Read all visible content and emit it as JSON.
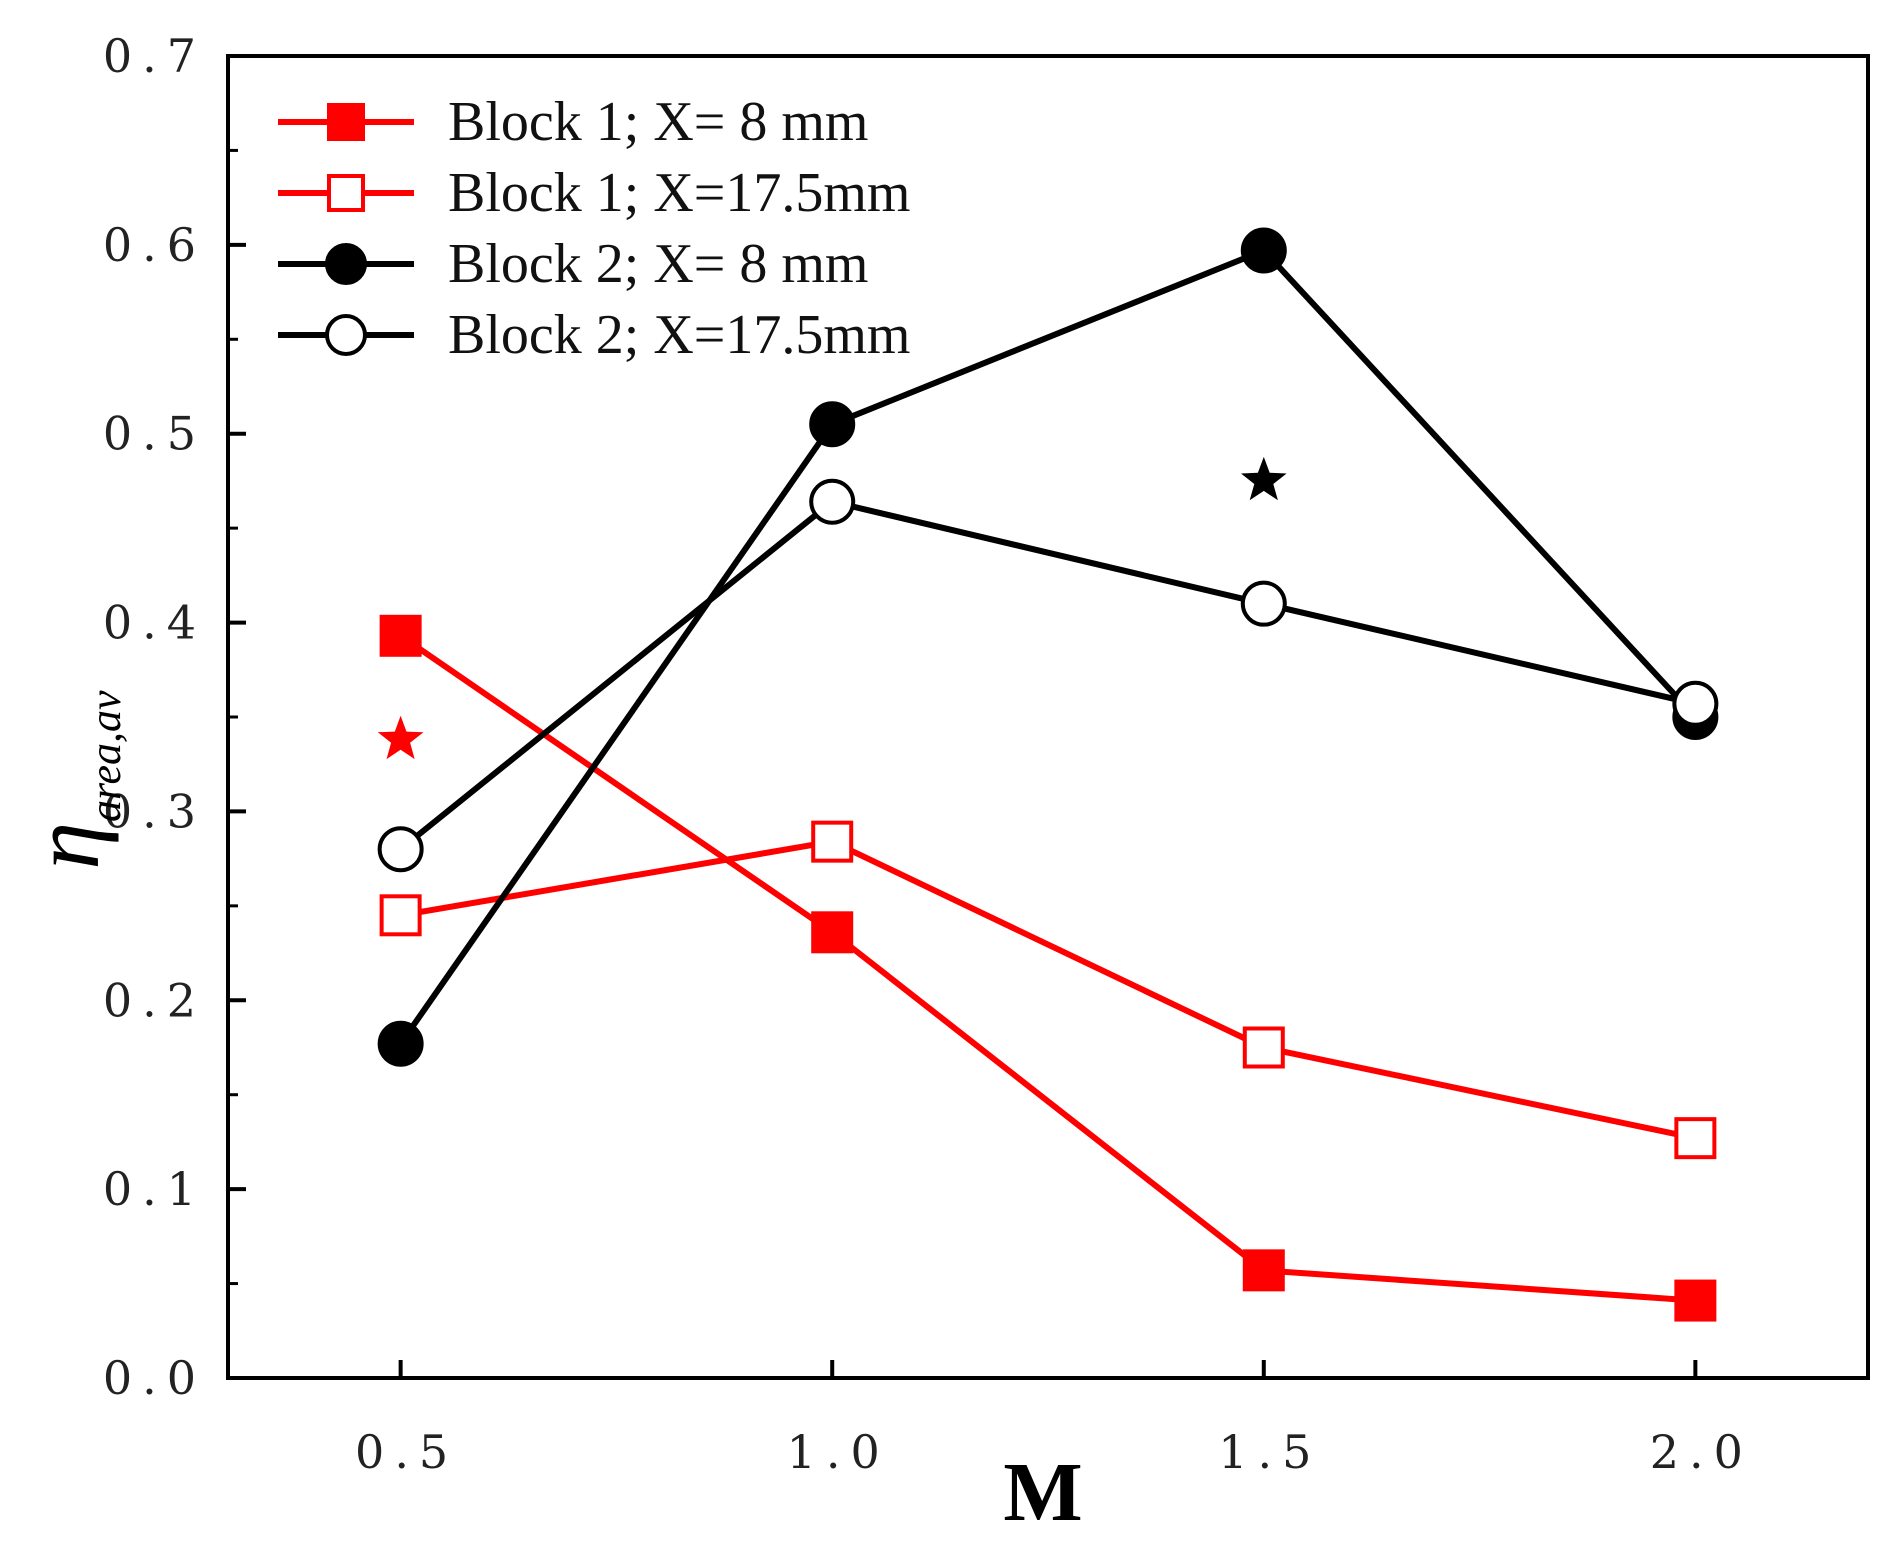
{
  "chart_data": {
    "type": "line",
    "title": "",
    "xlabel": "M",
    "ylabel": {
      "symbol": "η",
      "subscript": "area,av"
    },
    "xlim": [
      0.3,
      2.2
    ],
    "ylim": [
      0.0,
      0.7
    ],
    "x_ticks": [
      0.5,
      1.0,
      1.5,
      2.0
    ],
    "x_tick_labels": [
      "0.5",
      "1.0",
      "1.5",
      "2.0"
    ],
    "y_ticks": [
      0.0,
      0.1,
      0.2,
      0.3,
      0.4,
      0.5,
      0.6,
      0.7
    ],
    "y_tick_labels": [
      "0.0",
      "0.1",
      "0.2",
      "0.3",
      "0.4",
      "0.5",
      "0.6",
      "0.7"
    ],
    "grid": false,
    "legend_position": "top-left",
    "x": [
      0.5,
      1.0,
      1.5,
      2.0
    ],
    "series": [
      {
        "name": "Block 1; X= 8 mm",
        "values": [
          0.393,
          0.236,
          0.057,
          0.041
        ],
        "color": "#ff0000",
        "marker": "square",
        "filled": true
      },
      {
        "name": "Block 1; X=17.5mm",
        "values": [
          0.245,
          0.284,
          0.175,
          0.127
        ],
        "color": "#ff0000",
        "marker": "square",
        "filled": false
      },
      {
        "name": "Block 2; X= 8 mm",
        "values": [
          0.177,
          0.505,
          0.597,
          0.35
        ],
        "color": "#000000",
        "marker": "circle",
        "filled": true
      },
      {
        "name": "Block 2; X=17.5mm",
        "values": [
          0.28,
          0.464,
          0.41,
          0.357
        ],
        "color": "#000000",
        "marker": "circle",
        "filled": false
      }
    ],
    "annotations": [
      {
        "type": "star",
        "x": 0.5,
        "y": 0.338,
        "color": "#ff0000"
      },
      {
        "type": "star",
        "x": 1.5,
        "y": 0.475,
        "color": "#000000"
      }
    ]
  }
}
